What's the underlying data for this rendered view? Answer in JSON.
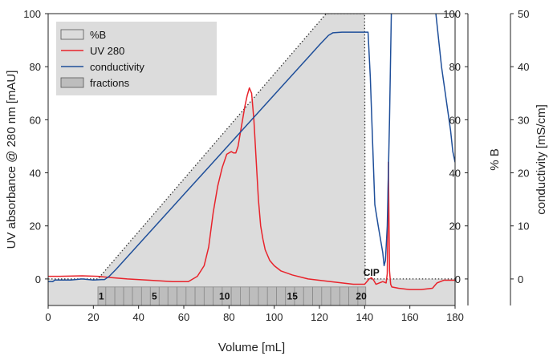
{
  "chart_data": {
    "type": "line",
    "xlabel": "Volume [mL]",
    "ylabel_left": "UV absorbance @ 280 nm [mAU]",
    "ylabel_right1": "% B",
    "ylabel_right2": "conductivity [mS/cm]",
    "xlim": [
      0,
      180
    ],
    "ylim_left": [
      -10,
      100
    ],
    "ylim_right1": [
      -10,
      100
    ],
    "ylim_right2": [
      -5,
      50
    ],
    "x_ticks": [
      0,
      20,
      40,
      60,
      80,
      100,
      120,
      140,
      160,
      180
    ],
    "y_left_ticks": [
      0,
      20,
      40,
      60,
      80,
      100
    ],
    "y_right1_ticks": [
      0,
      20,
      40,
      60,
      80,
      100
    ],
    "y_right2_ticks": [
      0,
      10,
      20,
      30,
      40,
      50
    ],
    "legend": {
      "position": "top-left",
      "entries": [
        {
          "label": "%B",
          "color": "#dcdcdc",
          "style": "box"
        },
        {
          "label": "UV 280",
          "color": "#e8232b",
          "style": "line"
        },
        {
          "label": "conductivity",
          "color": "#1f4f9a",
          "style": "line"
        },
        {
          "label": "fractions",
          "color": "#bdbdbd",
          "style": "box"
        }
      ]
    },
    "series": [
      {
        "name": "%B",
        "axis": "right1",
        "color": "#dcdcdc",
        "x": [
          0,
          22,
          123,
          140,
          140.2,
          180
        ],
        "y": [
          0,
          0,
          100,
          100,
          0,
          0
        ]
      },
      {
        "name": "UV 280",
        "axis": "left",
        "color": "#e8232b",
        "x": [
          0,
          5,
          15,
          22,
          28,
          35,
          45,
          55,
          62,
          66,
          69,
          71,
          73,
          75,
          77,
          79,
          81,
          82,
          83,
          84,
          85,
          86,
          87,
          88,
          89,
          90,
          91,
          92,
          93,
          94,
          95,
          96,
          97,
          98,
          100,
          103,
          108,
          115,
          125,
          135,
          140,
          142,
          143,
          144,
          145,
          148,
          149.5,
          150,
          150.5,
          151,
          151.5,
          152,
          155,
          160,
          165,
          170,
          172,
          175,
          180
        ],
        "y": [
          1,
          1,
          1.2,
          1,
          0.5,
          0,
          -0.5,
          -1,
          -1,
          1,
          5,
          12,
          25,
          35,
          42,
          47,
          48,
          47.5,
          47.5,
          50,
          55,
          60,
          65,
          69,
          72,
          70,
          60,
          45,
          30,
          20,
          15,
          11,
          9,
          7,
          5,
          3,
          1.5,
          0,
          -1,
          -2,
          -2,
          0,
          0.5,
          -0.5,
          -2,
          -1,
          -1.5,
          2,
          44,
          3,
          -2,
          -3,
          -3.5,
          -4,
          -4,
          -3.5,
          -1.5,
          -0.5,
          -0.5
        ]
      },
      {
        "name": "conductivity",
        "axis": "right2",
        "color": "#1f4f9a",
        "x": [
          0,
          2,
          3,
          5,
          10,
          15,
          20,
          25,
          27,
          30,
          40,
          60,
          80,
          100,
          120,
          124,
          126,
          130,
          140,
          141.5,
          142.5,
          143.5,
          144.5,
          146,
          148,
          148.6,
          149.2,
          150,
          150.5,
          151,
          151.4,
          151.8,
          152.2,
          152.6,
          170.5,
          171,
          172,
          173,
          174,
          175,
          176,
          177,
          178,
          179,
          180
        ],
        "y": [
          -0.5,
          -0.5,
          -0.2,
          -0.2,
          -0.2,
          0,
          -0.2,
          -0.1,
          0.5,
          1.8,
          6.5,
          15.9,
          25.3,
          34.7,
          44.1,
          45.9,
          46.4,
          46.5,
          46.5,
          46.5,
          38,
          26,
          14,
          10,
          5,
          2.5,
          3.5,
          10,
          20,
          30,
          40,
          50,
          55,
          60,
          60,
          52,
          48,
          44,
          40,
          37,
          34,
          31,
          28,
          24,
          22
        ]
      }
    ],
    "fractions": {
      "color": "#bdbdbd",
      "boundaries": [
        22,
        25.5,
        29.5,
        33.4,
        37.3,
        41.3,
        45.2,
        49.1,
        53,
        57,
        61,
        65,
        69,
        73,
        77,
        81,
        85,
        89,
        93,
        97,
        101,
        105,
        109,
        113,
        117,
        121,
        125,
        129,
        133,
        137,
        140.5
      ],
      "labels": [
        {
          "text": "1",
          "x": 23.5
        },
        {
          "text": "5",
          "x": 47
        },
        {
          "text": "10",
          "x": 78
        },
        {
          "text": "15",
          "x": 108
        },
        {
          "text": "20",
          "x": 138.5
        }
      ],
      "ymin": -10,
      "ymax": -3
    },
    "annotations": [
      {
        "text": "CIP",
        "x": 143,
        "y": 0
      }
    ]
  }
}
